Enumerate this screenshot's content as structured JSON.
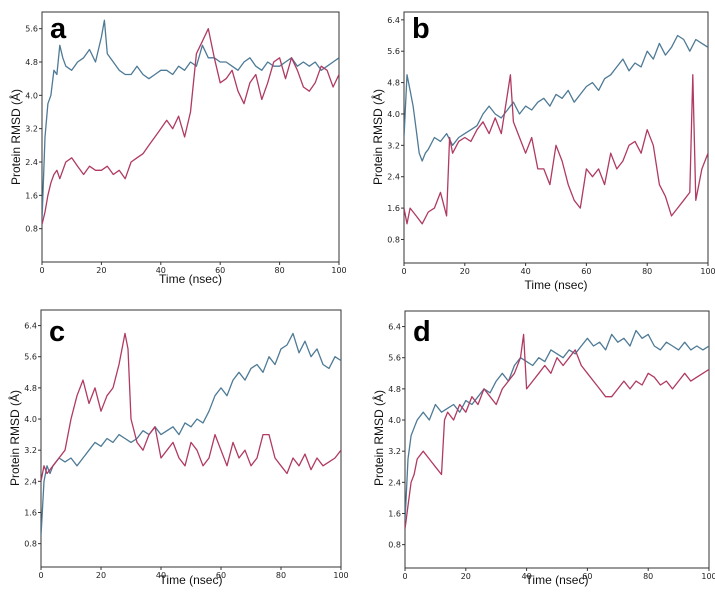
{
  "colors": {
    "series_1": "#4e7a96",
    "series_2": "#b03a62",
    "axis": "#333333"
  },
  "chart_data": [
    {
      "type": "line",
      "panel_label": "a",
      "xlabel": "Time (nsec)",
      "ylabel": "Protein RMSD (Å)",
      "xlim": [
        0,
        100
      ],
      "ylim": [
        0,
        6.0
      ],
      "x_ticks": [
        "0",
        "20",
        "40",
        "60",
        "80",
        "100"
      ],
      "y_ticks": [
        "0.8",
        "1.6",
        "2.4",
        "3.2",
        "4.0",
        "4.8",
        "5.6"
      ],
      "series": [
        {
          "name": "blue",
          "color": "#4e7a96",
          "x": [
            0,
            1,
            2,
            3,
            4,
            5,
            6,
            7,
            8,
            10,
            12,
            14,
            16,
            18,
            20,
            21,
            22,
            24,
            26,
            28,
            30,
            32,
            34,
            36,
            38,
            40,
            42,
            44,
            46,
            48,
            50,
            52,
            54,
            56,
            58,
            60,
            62,
            64,
            66,
            68,
            70,
            72,
            74,
            76,
            78,
            80,
            82,
            84,
            86,
            88,
            90,
            92,
            94,
            96,
            98,
            100
          ],
          "values": [
            1.0,
            3.0,
            3.8,
            4.0,
            4.6,
            4.5,
            5.2,
            4.9,
            4.7,
            4.6,
            4.8,
            4.9,
            5.1,
            4.8,
            5.4,
            5.8,
            5.0,
            4.8,
            4.6,
            4.5,
            4.5,
            4.7,
            4.5,
            4.4,
            4.5,
            4.6,
            4.6,
            4.5,
            4.7,
            4.6,
            4.8,
            4.7,
            5.2,
            4.9,
            4.9,
            4.8,
            4.8,
            4.7,
            4.6,
            4.8,
            4.9,
            4.7,
            4.6,
            4.8,
            4.7,
            4.7,
            4.8,
            4.9,
            4.7,
            4.8,
            4.7,
            4.8,
            4.6,
            4.7,
            4.8,
            4.9
          ]
        },
        {
          "name": "red",
          "color": "#b03a62",
          "x": [
            0,
            1,
            2,
            3,
            4,
            5,
            6,
            8,
            10,
            12,
            14,
            16,
            18,
            20,
            22,
            24,
            26,
            28,
            30,
            32,
            34,
            36,
            38,
            40,
            42,
            44,
            46,
            48,
            50,
            52,
            54,
            56,
            58,
            60,
            62,
            64,
            66,
            68,
            70,
            72,
            74,
            76,
            78,
            80,
            82,
            84,
            86,
            88,
            90,
            92,
            94,
            96,
            98,
            100
          ],
          "values": [
            0.9,
            1.2,
            1.6,
            1.9,
            2.1,
            2.2,
            2.0,
            2.4,
            2.5,
            2.3,
            2.1,
            2.3,
            2.2,
            2.2,
            2.3,
            2.1,
            2.2,
            2.0,
            2.4,
            2.5,
            2.6,
            2.8,
            3.0,
            3.2,
            3.4,
            3.2,
            3.5,
            3.0,
            3.6,
            5.0,
            5.3,
            5.6,
            4.9,
            4.3,
            4.4,
            4.6,
            4.1,
            3.8,
            4.3,
            4.5,
            3.9,
            4.3,
            4.8,
            4.9,
            4.4,
            4.9,
            4.6,
            4.2,
            4.1,
            4.3,
            4.7,
            4.6,
            4.2,
            4.5
          ]
        }
      ]
    },
    {
      "type": "line",
      "panel_label": "b",
      "xlabel": "Time (nsec)",
      "ylabel": "Protein RMSD (Å)",
      "xlim": [
        0,
        100
      ],
      "ylim": [
        0.2,
        6.6
      ],
      "x_ticks": [
        "0",
        "20",
        "40",
        "60",
        "80",
        "100"
      ],
      "y_ticks": [
        "0.8",
        "1.6",
        "2.4",
        "3.2",
        "4.0",
        "4.8",
        "5.6",
        "6.4"
      ],
      "series": [
        {
          "name": "blue",
          "color": "#4e7a96",
          "x": [
            0,
            1,
            2,
            3,
            4,
            5,
            6,
            7,
            8,
            10,
            12,
            14,
            16,
            18,
            20,
            22,
            24,
            26,
            28,
            30,
            32,
            34,
            36,
            38,
            40,
            42,
            44,
            46,
            48,
            50,
            52,
            54,
            56,
            58,
            60,
            62,
            64,
            66,
            68,
            70,
            72,
            74,
            76,
            78,
            80,
            82,
            84,
            86,
            88,
            90,
            92,
            94,
            96,
            98,
            100
          ],
          "values": [
            3.4,
            5.0,
            4.6,
            4.2,
            3.6,
            3.0,
            2.8,
            3.0,
            3.1,
            3.4,
            3.3,
            3.5,
            3.2,
            3.4,
            3.5,
            3.6,
            3.7,
            4.0,
            4.2,
            4.0,
            3.9,
            4.1,
            4.3,
            4.0,
            4.2,
            4.1,
            4.3,
            4.4,
            4.2,
            4.5,
            4.4,
            4.6,
            4.3,
            4.5,
            4.7,
            4.8,
            4.6,
            4.9,
            5.0,
            5.2,
            5.4,
            5.1,
            5.3,
            5.2,
            5.6,
            5.4,
            5.8,
            5.5,
            5.7,
            6.0,
            5.9,
            5.6,
            5.9,
            5.8,
            5.7
          ]
        },
        {
          "name": "red",
          "color": "#b03a62",
          "x": [
            0,
            1,
            2,
            4,
            6,
            8,
            10,
            12,
            14,
            15,
            16,
            18,
            20,
            22,
            24,
            26,
            28,
            30,
            32,
            34,
            35,
            36,
            38,
            40,
            42,
            44,
            46,
            48,
            50,
            52,
            54,
            56,
            58,
            60,
            62,
            64,
            66,
            68,
            70,
            72,
            74,
            76,
            78,
            80,
            82,
            84,
            86,
            88,
            90,
            92,
            94,
            95,
            96,
            98,
            100
          ],
          "values": [
            1.6,
            1.2,
            1.6,
            1.4,
            1.2,
            1.5,
            1.6,
            2.0,
            1.4,
            3.4,
            3.0,
            3.3,
            3.4,
            3.3,
            3.6,
            3.8,
            3.5,
            3.9,
            3.5,
            4.5,
            5.0,
            3.8,
            3.4,
            3.0,
            3.4,
            2.6,
            2.6,
            2.2,
            3.2,
            2.8,
            2.2,
            1.8,
            1.6,
            2.6,
            2.4,
            2.6,
            2.2,
            3.0,
            2.6,
            2.8,
            3.2,
            3.3,
            3.0,
            3.6,
            3.2,
            2.2,
            1.9,
            1.4,
            1.6,
            1.8,
            2.0,
            5.0,
            1.8,
            2.6,
            3.0
          ]
        }
      ]
    },
    {
      "type": "line",
      "panel_label": "c",
      "xlabel": "Time (nsec)",
      "ylabel": "Protein RMSD (Å)",
      "xlim": [
        0,
        100
      ],
      "ylim": [
        0.2,
        6.8
      ],
      "x_ticks": [
        "0",
        "20",
        "40",
        "60",
        "80",
        "100"
      ],
      "y_ticks": [
        "0.8",
        "1.6",
        "2.4",
        "3.2",
        "4.0",
        "4.8",
        "5.6",
        "6.4"
      ],
      "series": [
        {
          "name": "blue",
          "color": "#4e7a96",
          "x": [
            0,
            1,
            2,
            3,
            4,
            6,
            8,
            10,
            12,
            14,
            16,
            18,
            20,
            22,
            24,
            26,
            28,
            30,
            32,
            34,
            36,
            38,
            40,
            42,
            44,
            46,
            48,
            50,
            52,
            54,
            56,
            58,
            60,
            62,
            64,
            66,
            68,
            70,
            72,
            74,
            76,
            78,
            80,
            82,
            84,
            86,
            88,
            90,
            92,
            94,
            96,
            98,
            100
          ],
          "values": [
            1.0,
            2.4,
            2.8,
            2.6,
            2.8,
            3.0,
            2.9,
            3.0,
            2.8,
            3.0,
            3.2,
            3.4,
            3.3,
            3.5,
            3.4,
            3.6,
            3.5,
            3.4,
            3.5,
            3.7,
            3.6,
            3.8,
            3.6,
            3.7,
            3.8,
            3.6,
            3.9,
            3.8,
            4.0,
            3.9,
            4.2,
            4.6,
            4.8,
            4.6,
            5.0,
            5.2,
            5.0,
            5.3,
            5.4,
            5.2,
            5.6,
            5.4,
            5.8,
            5.9,
            6.2,
            5.7,
            6.0,
            5.6,
            5.8,
            5.4,
            5.3,
            5.6,
            5.5
          ]
        },
        {
          "name": "red",
          "color": "#b03a62",
          "x": [
            0,
            1,
            2,
            4,
            6,
            8,
            10,
            12,
            14,
            16,
            18,
            20,
            22,
            24,
            26,
            28,
            29,
            30,
            32,
            34,
            36,
            38,
            40,
            42,
            44,
            46,
            48,
            50,
            52,
            54,
            56,
            58,
            60,
            62,
            64,
            66,
            68,
            70,
            72,
            74,
            76,
            78,
            80,
            82,
            84,
            86,
            88,
            90,
            92,
            94,
            96,
            98,
            100
          ],
          "values": [
            2.4,
            2.8,
            2.6,
            2.8,
            3.0,
            3.2,
            4.0,
            4.6,
            5.0,
            4.4,
            4.8,
            4.2,
            4.6,
            4.8,
            5.4,
            6.2,
            5.8,
            4.0,
            3.4,
            3.2,
            3.6,
            3.8,
            3.0,
            3.2,
            3.4,
            3.0,
            2.8,
            3.4,
            3.2,
            2.8,
            3.0,
            3.6,
            3.2,
            2.8,
            3.4,
            3.0,
            3.2,
            2.8,
            3.0,
            3.6,
            3.6,
            3.0,
            2.8,
            2.6,
            3.0,
            2.8,
            3.1,
            2.7,
            3.0,
            2.8,
            2.9,
            3.0,
            3.2
          ]
        }
      ]
    },
    {
      "type": "line",
      "panel_label": "d",
      "xlabel": "Time (nsec)",
      "ylabel": "Protein RMSD (Å)",
      "xlim": [
        0,
        100
      ],
      "ylim": [
        0.2,
        6.8
      ],
      "x_ticks": [
        "0",
        "20",
        "40",
        "60",
        "80",
        "100"
      ],
      "y_ticks": [
        "0.8",
        "1.6",
        "2.4",
        "3.2",
        "4.0",
        "4.8",
        "5.6",
        "6.4"
      ],
      "series": [
        {
          "name": "blue",
          "color": "#4e7a96",
          "x": [
            0,
            1,
            2,
            3,
            4,
            6,
            8,
            10,
            12,
            14,
            16,
            18,
            20,
            22,
            24,
            26,
            28,
            30,
            32,
            34,
            36,
            38,
            40,
            42,
            44,
            46,
            48,
            50,
            52,
            54,
            56,
            58,
            60,
            62,
            64,
            66,
            68,
            70,
            72,
            74,
            76,
            78,
            80,
            82,
            84,
            86,
            88,
            90,
            92,
            94,
            96,
            98,
            100
          ],
          "values": [
            1.4,
            3.0,
            3.6,
            3.8,
            4.0,
            4.2,
            4.0,
            4.4,
            4.2,
            4.3,
            4.4,
            4.2,
            4.5,
            4.4,
            4.6,
            4.8,
            4.7,
            5.0,
            5.2,
            5.0,
            5.4,
            5.6,
            5.5,
            5.4,
            5.6,
            5.5,
            5.8,
            5.7,
            5.6,
            5.8,
            5.7,
            5.9,
            6.1,
            5.9,
            6.0,
            5.8,
            6.2,
            6.0,
            6.1,
            5.9,
            6.3,
            6.1,
            6.2,
            5.9,
            5.8,
            6.0,
            5.9,
            5.8,
            6.0,
            5.8,
            5.9,
            5.8,
            5.9
          ]
        },
        {
          "name": "red",
          "color": "#b03a62",
          "x": [
            0,
            1,
            2,
            3,
            4,
            6,
            8,
            10,
            12,
            13,
            14,
            16,
            18,
            20,
            22,
            24,
            26,
            28,
            30,
            32,
            34,
            36,
            38,
            39,
            40,
            42,
            44,
            46,
            48,
            50,
            52,
            54,
            56,
            58,
            60,
            62,
            64,
            66,
            68,
            70,
            72,
            74,
            76,
            78,
            80,
            82,
            84,
            86,
            88,
            90,
            92,
            94,
            96,
            98,
            100
          ],
          "values": [
            1.2,
            1.8,
            2.4,
            2.6,
            3.0,
            3.2,
            3.0,
            2.8,
            2.6,
            4.0,
            4.2,
            4.0,
            4.4,
            4.2,
            4.6,
            4.4,
            4.8,
            4.6,
            4.4,
            4.8,
            5.0,
            5.2,
            5.6,
            6.2,
            4.8,
            5.0,
            5.2,
            5.4,
            5.2,
            5.6,
            5.4,
            5.6,
            5.8,
            5.4,
            5.2,
            5.0,
            4.8,
            4.6,
            4.6,
            4.8,
            5.0,
            4.8,
            5.0,
            4.9,
            5.2,
            5.1,
            4.9,
            5.0,
            4.8,
            5.0,
            5.2,
            5.0,
            5.1,
            5.2,
            5.3
          ]
        }
      ]
    }
  ]
}
